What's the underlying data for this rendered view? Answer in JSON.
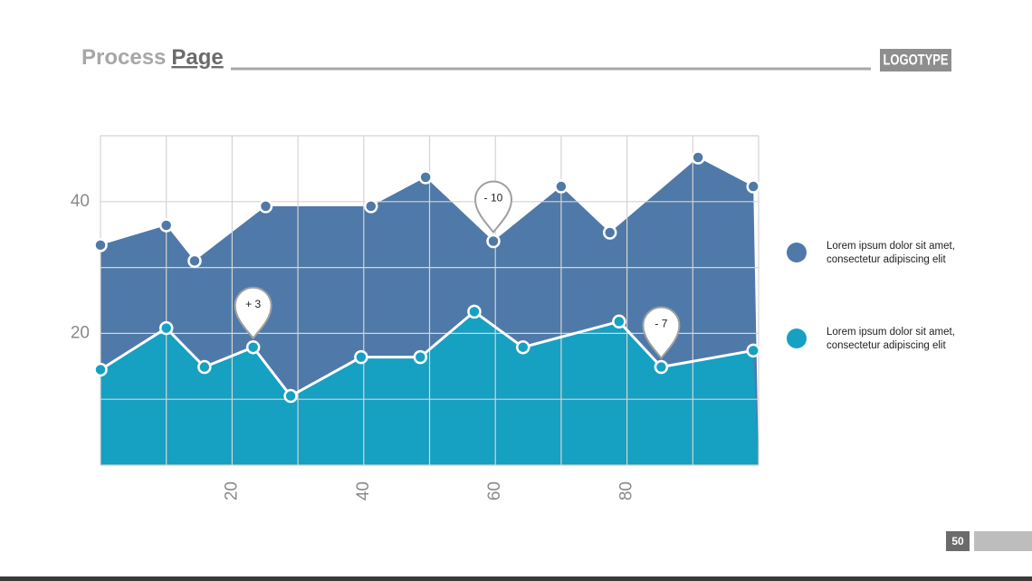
{
  "header": {
    "title_part1": "Process",
    "title_part2": "Page",
    "logo": "LOGOTYPE"
  },
  "page_number": "50",
  "chart_data": {
    "type": "area",
    "xlim": [
      0,
      100
    ],
    "xticks": [
      20,
      40,
      60,
      80
    ],
    "xgrid": [
      0,
      10,
      20,
      30,
      40,
      50,
      60,
      70,
      80,
      90,
      100
    ],
    "ylim": [
      0,
      50
    ],
    "yticks": [
      20,
      40
    ],
    "ygrid": [
      0,
      10,
      20,
      30,
      40,
      50
    ],
    "series": [
      {
        "name": "Lorem ipsum dolor sit amet, consectetur adipiscing elit",
        "color": "#4f79a8",
        "x": [
          0,
          10,
          14.3,
          25.1,
          41.1,
          49.4,
          59.7,
          70,
          77.4,
          90.8,
          99.2
        ],
        "values": [
          33.4,
          36.4,
          31,
          39.3,
          39.3,
          43.7,
          34,
          42.3,
          35.3,
          46.7,
          42.3
        ]
      },
      {
        "name": "Lorem ipsum dolor sit amet, consectetur adipiscing elit",
        "color": "#16a0c2",
        "x": [
          0,
          10,
          15.8,
          23.2,
          28.9,
          39.6,
          48.6,
          56.8,
          64.2,
          78.8,
          85.2,
          99.2
        ],
        "values": [
          14.5,
          20.8,
          14.9,
          17.9,
          10.5,
          16.4,
          16.4,
          23.3,
          17.9,
          21.8,
          14.9,
          17.4
        ]
      }
    ],
    "annotations": [
      {
        "text": "+ 3",
        "x": 23.2,
        "y": 17.9
      },
      {
        "text": "- 10",
        "x": 59.7,
        "y": 34
      },
      {
        "text": "- 7",
        "x": 85.2,
        "y": 14.9
      }
    ]
  }
}
